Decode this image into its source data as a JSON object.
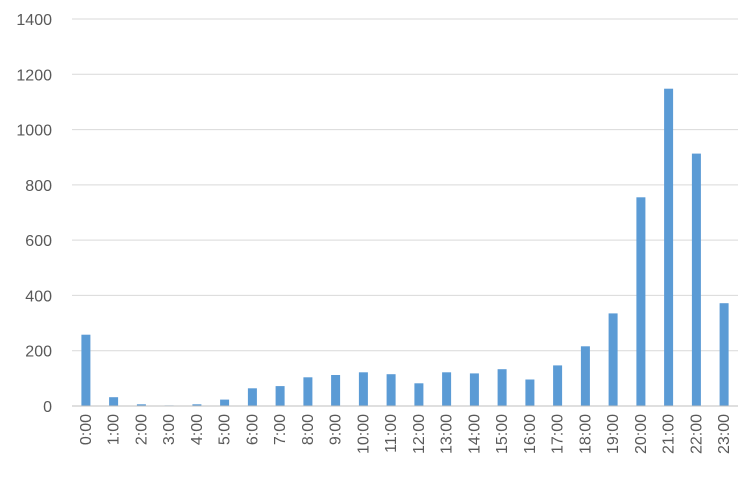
{
  "chart_data": {
    "type": "bar",
    "title": "",
    "xlabel": "",
    "ylabel": "",
    "categories": [
      "0:00",
      "1:00",
      "2:00",
      "3:00",
      "4:00",
      "5:00",
      "6:00",
      "7:00",
      "8:00",
      "9:00",
      "10:00",
      "11:00",
      "12:00",
      "13:00",
      "14:00",
      "15:00",
      "16:00",
      "17:00",
      "18:00",
      "19:00",
      "20:00",
      "21:00",
      "22:00",
      "23:00"
    ],
    "values": [
      258,
      32,
      6,
      2,
      6,
      23,
      64,
      72,
      104,
      112,
      122,
      115,
      82,
      122,
      118,
      133,
      96,
      147,
      216,
      335,
      755,
      1148,
      913,
      372
    ],
    "ylim": [
      0,
      1400
    ],
    "yticks": [
      0,
      200,
      400,
      600,
      800,
      1000,
      1200,
      1400
    ],
    "grid": true,
    "legend": "none",
    "colors": {
      "bar": "#5b9bd5",
      "grid": "#d9d9d9",
      "axis": "#bfbfbf",
      "text": "#595959"
    }
  }
}
